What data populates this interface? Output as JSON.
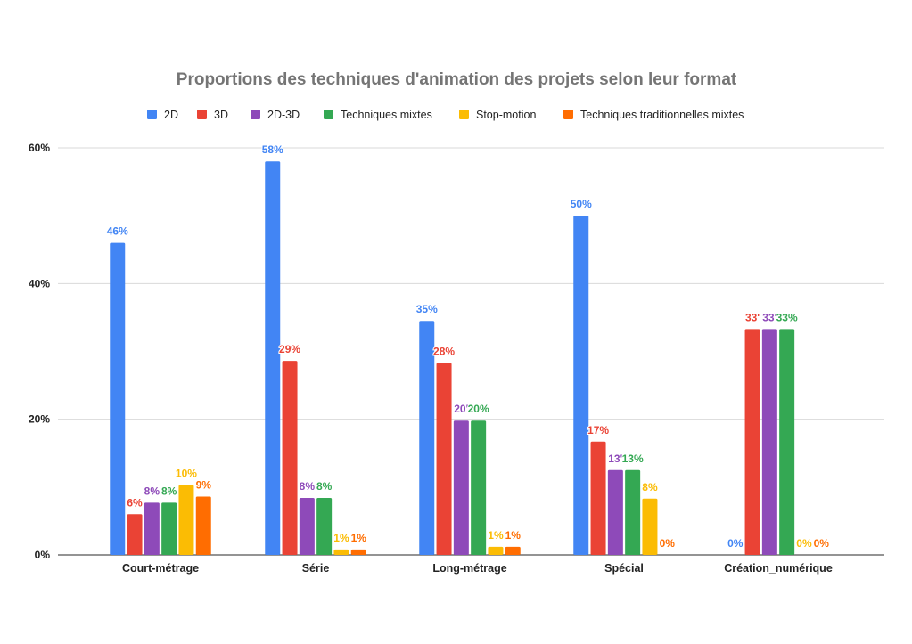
{
  "chart_data": {
    "type": "bar",
    "title": "Proportions des techniques d'animation des projets selon leur format",
    "xlabel": "",
    "ylabel": "",
    "ylim": [
      0,
      60
    ],
    "yticks": [
      "0%",
      "20%",
      "40%",
      "60%"
    ],
    "ytick_values": [
      0,
      20,
      40,
      60
    ],
    "grid": true,
    "legend_position": "top",
    "categories": [
      "Court-métrage",
      "Série",
      "Long-métrage",
      "Spécial",
      "Création_numérique"
    ],
    "series": [
      {
        "name": "2D",
        "color": "#4285F4",
        "values": [
          46,
          58,
          34.5,
          50,
          0
        ],
        "labels": [
          "46%",
          "58%",
          "35%",
          "50%",
          "0%"
        ]
      },
      {
        "name": "3D",
        "color": "#EA4335",
        "values": [
          6,
          28.6,
          28.3,
          16.7,
          33.3
        ],
        "labels": [
          "6%",
          "29%",
          "28%",
          "17%",
          "33'"
        ]
      },
      {
        "name": "2D-3D",
        "color": "#8E4AB9",
        "values": [
          7.7,
          8.4,
          19.8,
          12.5,
          33.3
        ],
        "labels": [
          "8%",
          "8%",
          "20'",
          "13'",
          "33'"
        ]
      },
      {
        "name": "Techniques mixtes",
        "color": "#34A853",
        "values": [
          7.7,
          8.4,
          19.8,
          12.5,
          33.3
        ],
        "labels": [
          "8%",
          "8%",
          "20%",
          "13%",
          "33%"
        ]
      },
      {
        "name": "Stop-motion",
        "color": "#FBBC04",
        "values": [
          10.3,
          0.8,
          1.2,
          8.3,
          0
        ],
        "labels": [
          "10%",
          "1%",
          "1%",
          "8%",
          "0%"
        ]
      },
      {
        "name": "Techniques traditionnelles mixtes",
        "color": "#FF6D01",
        "values": [
          8.6,
          0.8,
          1.2,
          0,
          0
        ],
        "labels": [
          "9%",
          "1%",
          "1%",
          "0%",
          "0%"
        ]
      }
    ]
  }
}
